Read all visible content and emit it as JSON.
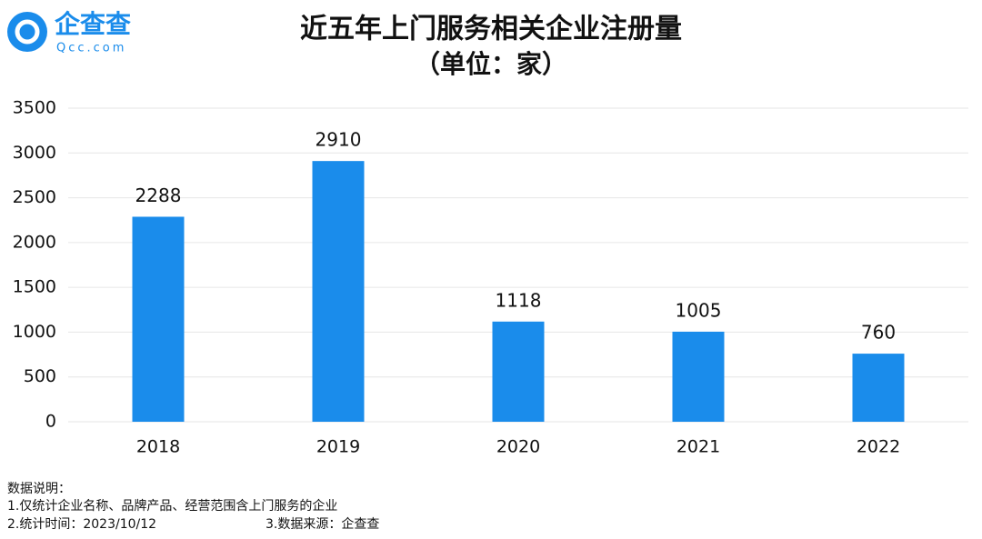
{
  "logo": {
    "name": "企查查",
    "url": "Qcc.com"
  },
  "chart_data": {
    "type": "bar",
    "title": "近五年上门服务相关企业注册量",
    "subtitle": "（单位：家）",
    "categories": [
      "2018",
      "2019",
      "2020",
      "2021",
      "2022"
    ],
    "values": [
      2288,
      2910,
      1118,
      1005,
      760
    ],
    "color": "#1a8ceb",
    "ylim": [
      0,
      3500
    ],
    "yticks": [
      0,
      500,
      1000,
      1500,
      2000,
      2500,
      3000,
      3500
    ],
    "grid": true,
    "data_labels": true
  },
  "notes": {
    "heading": "数据说明：",
    "lines": [
      "1.仅统计企业名称、品牌产品、经营范围含上门服务的企业",
      "2.统计时间：2023/10/12",
      "3.数据来源：企查查"
    ]
  }
}
